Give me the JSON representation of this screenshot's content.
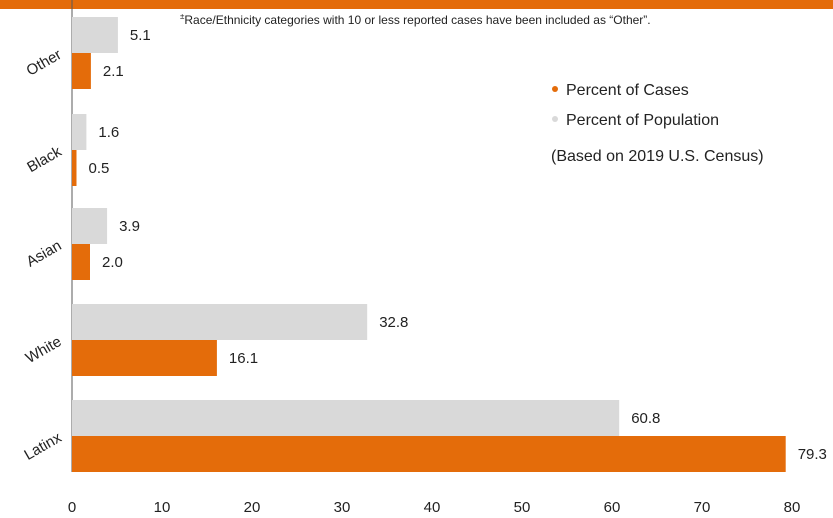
{
  "colors": {
    "cases": "#e46c0a",
    "population": "#d9d9d9",
    "banner": "#e46c0a",
    "axis": "#595959"
  },
  "footnote": {
    "marker": "±",
    "text": "Race/Ethnicity categories with 10 or less reported cases have been included as “Other”."
  },
  "legend": {
    "cases_label": "Percent of Cases",
    "population_label": "Percent of Population",
    "note": "(Based on 2019 U.S. Census)"
  },
  "chart_data": {
    "type": "bar",
    "orientation": "horizontal",
    "categories": [
      "Other",
      "Black",
      "Asian",
      "White",
      "Latinx"
    ],
    "series": [
      {
        "name": "Percent of Population",
        "values": [
          5.1,
          1.6,
          3.9,
          32.8,
          60.8
        ]
      },
      {
        "name": "Percent of Cases",
        "values": [
          2.1,
          0.5,
          2.0,
          16.1,
          79.3
        ]
      }
    ],
    "value_labels": {
      "population": [
        "5.1",
        "1.6",
        "3.9",
        "32.8",
        "60.8"
      ],
      "cases": [
        "2.1",
        "0.5",
        "2.0",
        "16.1",
        "79.3"
      ]
    },
    "xticks": [
      "0",
      "10",
      "20",
      "30",
      "40",
      "50",
      "60",
      "70",
      "80"
    ],
    "xlim": [
      0,
      80
    ],
    "grid": false,
    "legend_position": "right"
  }
}
